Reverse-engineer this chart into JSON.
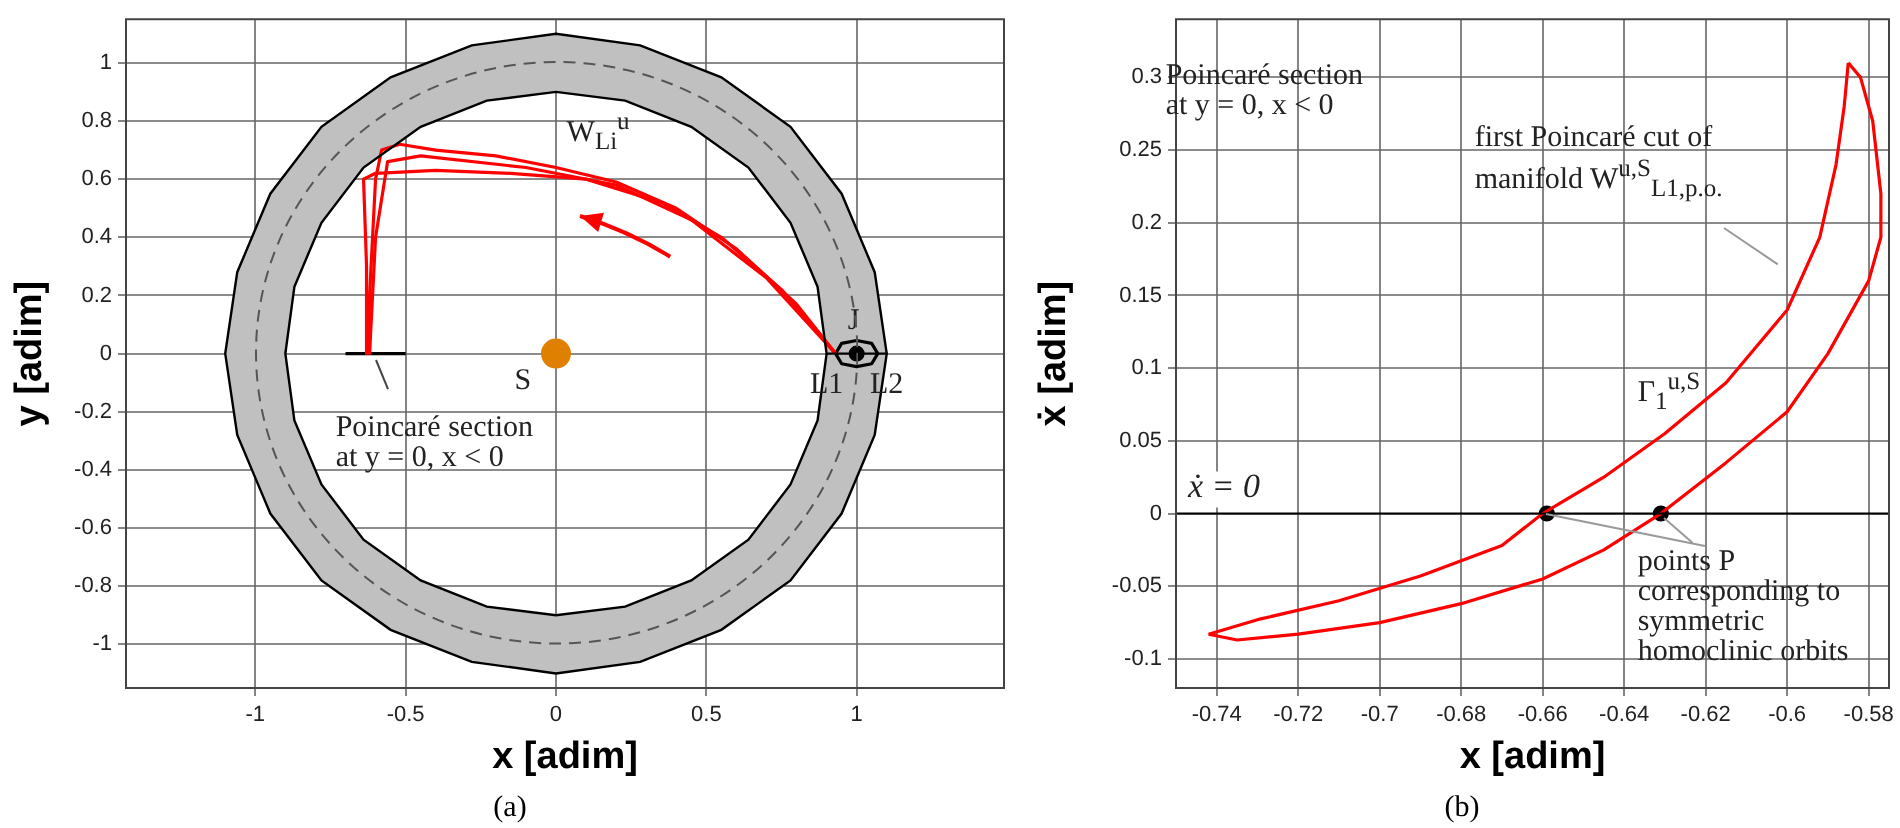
{
  "chart_data": [
    {
      "type": "line",
      "xlabel": "x [adim]",
      "ylabel": "y [adim]",
      "xlim": [
        -1.43,
        1.49
      ],
      "ylim": [
        -1.15,
        1.15
      ],
      "xticks": [
        -1,
        -0.5,
        0,
        0.5,
        1
      ],
      "yticks": [
        -1,
        -0.8,
        -0.6,
        -0.4,
        -0.2,
        0,
        0.2,
        0.4,
        0.6,
        0.8,
        1
      ],
      "grid": true,
      "legend": false,
      "marker": "none",
      "series": [
        {
          "type": "area",
          "color": "#c0c0c0",
          "x": [
            1.1,
            1.06,
            0.95,
            0.78,
            0.55,
            0.28,
            0,
            -0.28,
            -0.55,
            -0.78,
            -0.95,
            -1.06,
            -1.1,
            -1.06,
            -0.95,
            -0.78,
            -0.55,
            -0.28,
            0,
            0.28,
            0.55,
            0.78,
            0.95,
            1.06,
            1.1,
            0.9,
            0.87,
            0.78,
            0.64,
            0.45,
            0.23,
            0,
            -0.23,
            -0.45,
            -0.64,
            -0.78,
            -0.87,
            -0.9,
            -0.87,
            -0.78,
            -0.64,
            -0.45,
            -0.23,
            0,
            0.23,
            0.45,
            0.64,
            0.78,
            0.87,
            0.9
          ],
          "values": [
            0,
            0.28,
            0.55,
            0.78,
            0.95,
            1.06,
            1.1,
            1.06,
            0.95,
            0.78,
            0.55,
            0.28,
            0,
            -0.28,
            -0.55,
            -0.78,
            -0.95,
            -1.06,
            -1.1,
            -1.06,
            -0.95,
            -0.78,
            -0.55,
            -0.28,
            0,
            0,
            -0.23,
            -0.45,
            -0.64,
            -0.78,
            -0.87,
            -0.9,
            -0.87,
            -0.78,
            -0.64,
            -0.45,
            -0.23,
            0,
            0.23,
            0.45,
            0.64,
            0.78,
            0.87,
            0.9,
            0.87,
            0.78,
            0.64,
            0.45,
            0.23,
            0
          ]
        },
        {
          "color": "#ff0000",
          "x": [
            0.93,
            0.8,
            0.6,
            0.4,
            0.2,
            0,
            -0.2,
            -0.4,
            -0.52,
            -0.58,
            -0.6,
            -0.61,
            -0.62,
            -0.62
          ],
          "values": [
            0,
            0.17,
            0.36,
            0.5,
            0.59,
            0.64,
            0.68,
            0.7,
            0.72,
            0.7,
            0.6,
            0.4,
            0.2,
            0
          ]
        },
        {
          "color": "#ff0000",
          "x": [
            0.93,
            0.7,
            0.45,
            0.2,
            -0.1,
            -0.45,
            -0.56,
            -0.6,
            -0.62
          ],
          "values": [
            0,
            0.26,
            0.46,
            0.58,
            0.64,
            0.68,
            0.66,
            0.4,
            0
          ]
        },
        {
          "color": "#ff0000",
          "x": [
            0.93,
            0.75,
            0.55,
            0.35,
            0.1,
            -0.15,
            -0.4,
            -0.6,
            -0.64,
            -0.63,
            -0.63
          ],
          "values": [
            0,
            0.22,
            0.4,
            0.52,
            0.6,
            0.62,
            0.63,
            0.62,
            0.6,
            0.3,
            0
          ]
        },
        {
          "color": "#000000",
          "x": [
            -0.7,
            -0.5
          ],
          "values": [
            0,
            0
          ]
        },
        {
          "color": "#000000",
          "x": [
            0.93,
            0.95,
            1,
            1.05,
            1.07
          ],
          "values": [
            0,
            0.035,
            0.045,
            0.035,
            0
          ]
        },
        {
          "color": "#000000",
          "x": [
            0.93,
            0.95,
            1,
            1.05,
            1.07
          ],
          "values": [
            0,
            -0.035,
            -0.045,
            -0.035,
            0
          ]
        },
        {
          "type": "scatter",
          "marker": "circle",
          "color": "#e08000",
          "x": [
            0
          ],
          "values": [
            0
          ]
        },
        {
          "type": "scatter",
          "marker": "circle",
          "color": "#000000",
          "x": [
            1
          ],
          "values": [
            0
          ]
        }
      ],
      "annotations": [
        "W$_{Li}$$^{u}$",
        "S",
        "J",
        "L1",
        "L2",
        "Poincaré section at y = 0, x < 0",
        "(a)"
      ]
    },
    {
      "type": "line",
      "xlabel": "x [adim]",
      "ylabel": "ẋ [adim]",
      "xlim": [
        -0.75,
        -0.575
      ],
      "ylim": [
        -0.12,
        0.34
      ],
      "xticks": [
        -0.74,
        -0.72,
        -0.7,
        -0.68,
        -0.66,
        -0.64,
        -0.62,
        -0.6,
        -0.58
      ],
      "yticks": [
        -0.1,
        -0.05,
        0,
        0.05,
        0.1,
        0.15,
        0.2,
        0.25,
        0.3
      ],
      "grid": true,
      "legend": false,
      "marker": "none",
      "series": [
        {
          "color": "#ff0000",
          "x": [
            -0.742,
            -0.73,
            -0.71,
            -0.69,
            -0.67,
            -0.66,
            -0.645,
            -0.63,
            -0.615,
            -0.6,
            -0.592,
            -0.588,
            -0.586,
            -0.585
          ],
          "values": [
            -0.083,
            -0.073,
            -0.06,
            -0.043,
            -0.022,
            0,
            0.025,
            0.055,
            0.09,
            0.14,
            0.19,
            0.24,
            0.28,
            0.31
          ]
        },
        {
          "color": "#ff0000",
          "x": [
            -0.585,
            -0.582,
            -0.579,
            -0.577,
            -0.577,
            -0.58,
            -0.59,
            -0.6,
            -0.615,
            -0.631,
            -0.645,
            -0.66,
            -0.68,
            -0.7,
            -0.72,
            -0.735,
            -0.742
          ],
          "values": [
            0.31,
            0.3,
            0.27,
            0.22,
            0.19,
            0.16,
            0.11,
            0.07,
            0.035,
            0,
            -0.025,
            -0.045,
            -0.062,
            -0.075,
            -0.083,
            -0.087,
            -0.083
          ]
        },
        {
          "type": "scatter",
          "marker": "circle",
          "color": "#000000",
          "x": [
            -0.659,
            -0.631
          ],
          "values": [
            0,
            0
          ]
        }
      ],
      "ref_lines": [
        {
          "axis": "y",
          "value": 0,
          "label": "ẋ = 0",
          "color": "#000000"
        }
      ],
      "annotations": [
        "Poincaré section at y = 0, x < 0",
        "first Poincaré cut of manifold W$^{u,S}$$_{L1,p.o.}$",
        "Γ$_{1}$$^{u,S}$",
        {
          "text": "points P corresponding to symmetric homoclinic orbits",
          "x": -0.659,
          "y": 0
        },
        "(b)"
      ]
    }
  ]
}
